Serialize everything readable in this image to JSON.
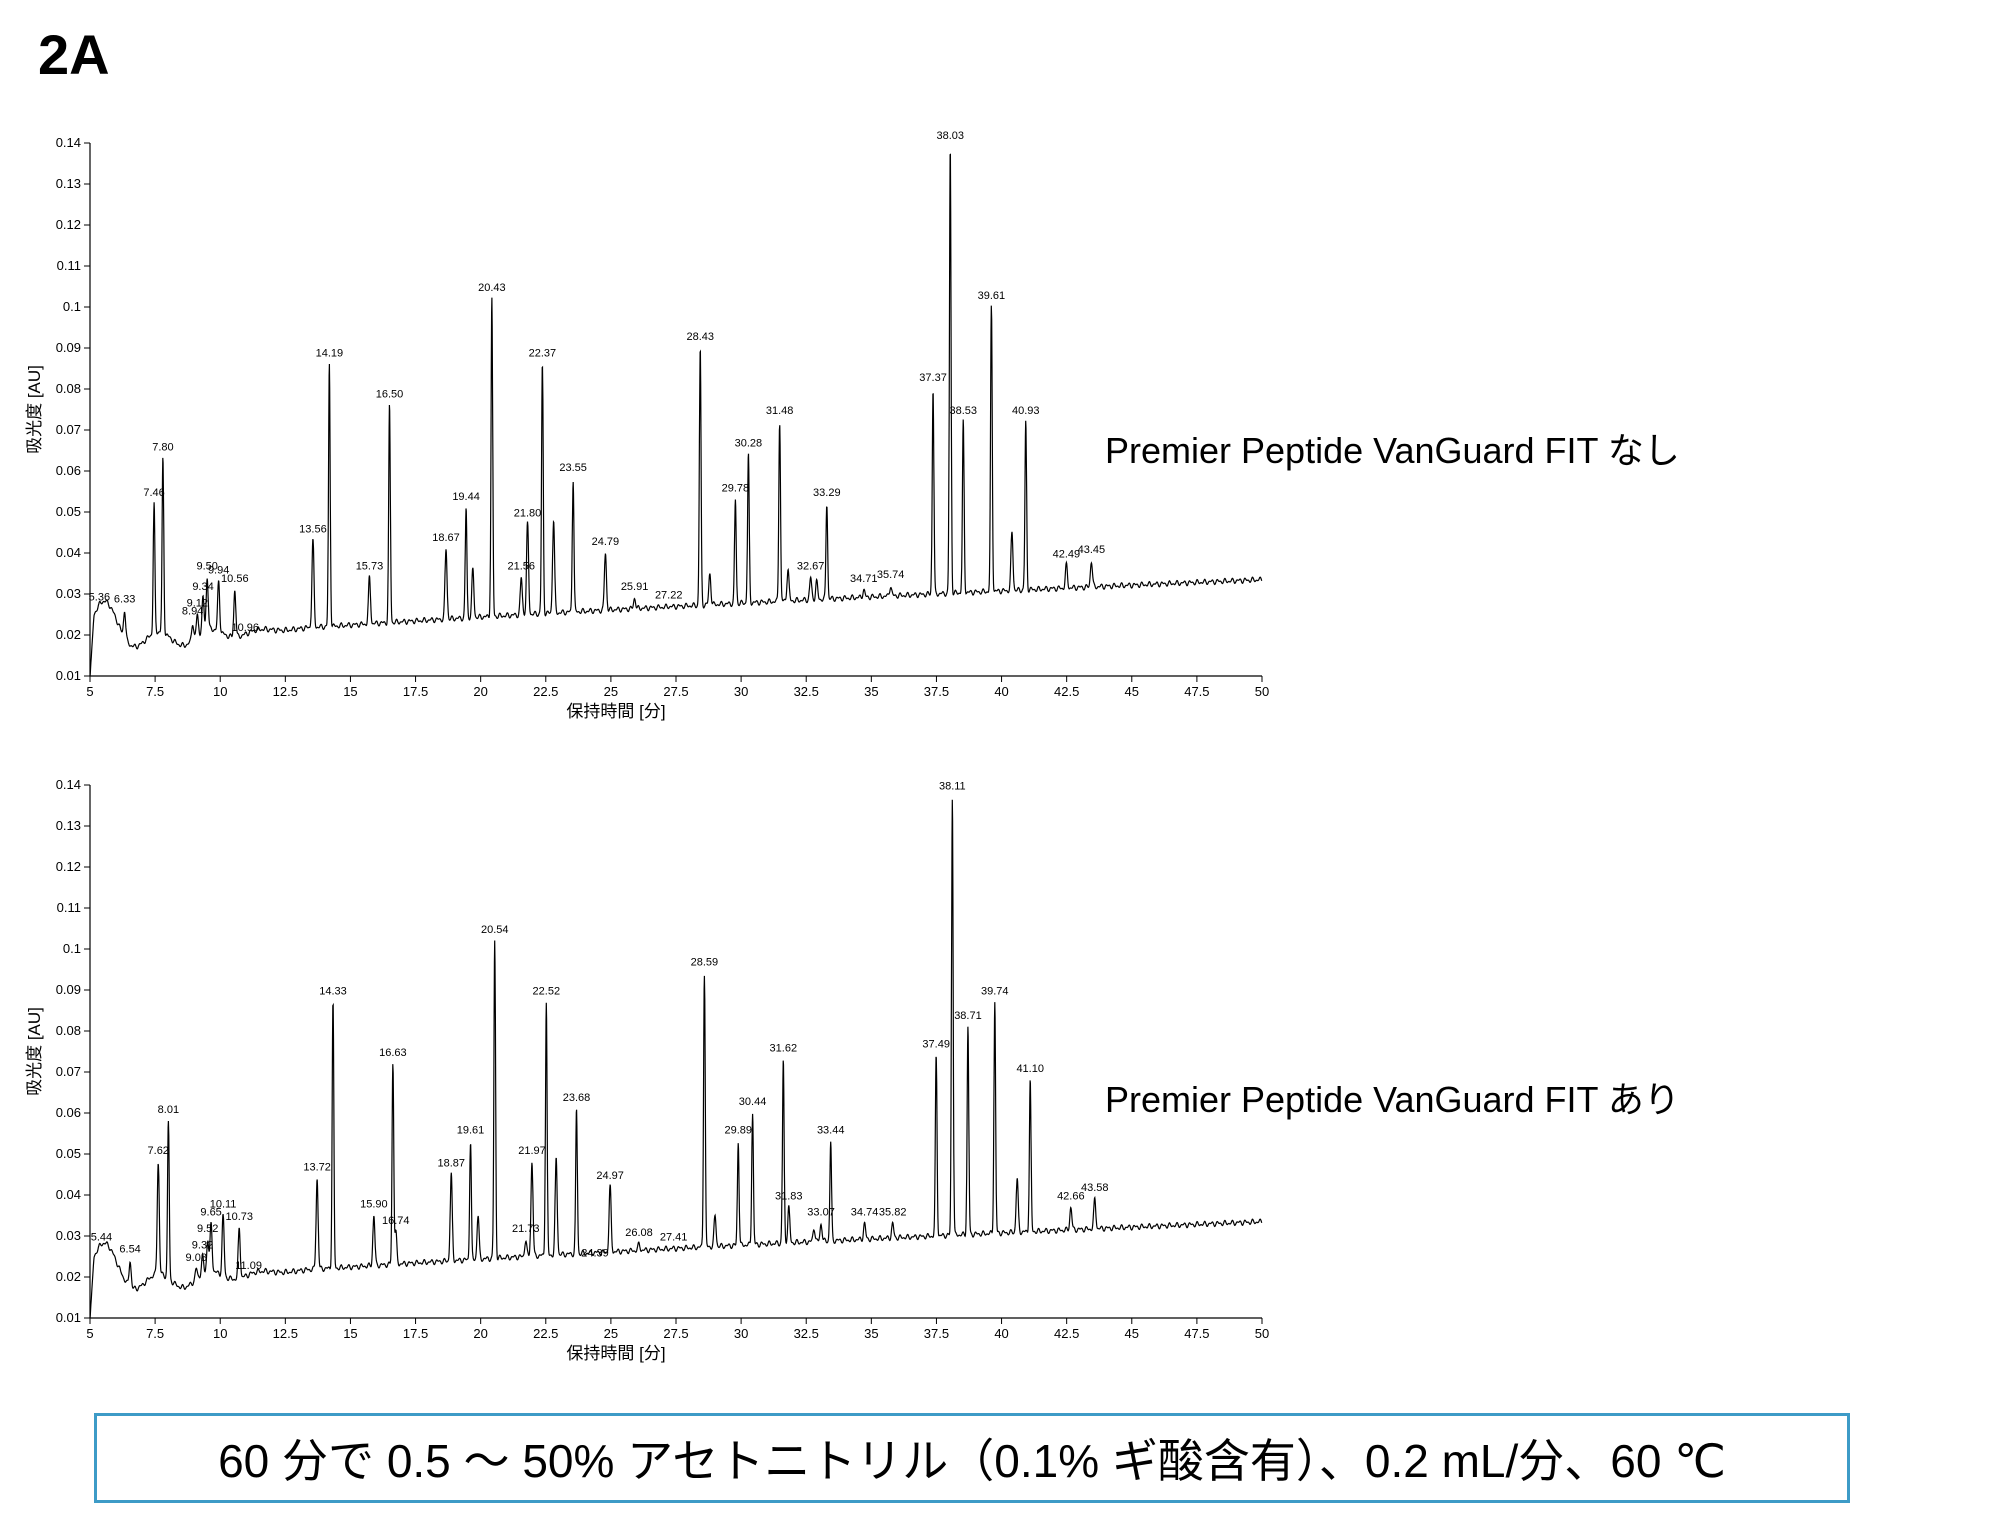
{
  "figure_label": "2A",
  "conditions": "60 分で 0.5 ～ 50% アセトニトリル（0.1% ギ酸含有）、0.2 mL/分、60 ℃",
  "colors": {
    "trace": "#000000",
    "box_border": "#3d9bc7"
  },
  "chart_data": [
    {
      "type": "line",
      "series_label": "Premier Peptide VanGuard FIT なし",
      "xlabel": "保持時間 [分]",
      "ylabel": "吸光度 [AU]",
      "xlim": [
        5,
        50
      ],
      "ylim": [
        0.01,
        0.14
      ],
      "xticks": [
        "5",
        "7.5",
        "10",
        "12.5",
        "15",
        "17.5",
        "20",
        "22.5",
        "25",
        "27.5",
        "30",
        "32.5",
        "35",
        "37.5",
        "40",
        "42.5",
        "45",
        "47.5",
        "50"
      ],
      "yticks": [
        "0.01",
        "0.02",
        "0.03",
        "0.04",
        "0.05",
        "0.06",
        "0.07",
        "0.08",
        "0.09",
        "0.1",
        "0.11",
        "0.12",
        "0.13",
        "0.14"
      ],
      "grid": false,
      "peaks": [
        {
          "rt": 5.36,
          "label": "5.36",
          "h": 0.0265
        },
        {
          "rt": 6.33,
          "label": "6.33",
          "h": 0.026
        },
        {
          "rt": 7.46,
          "label": "7.46",
          "h": 0.052
        },
        {
          "rt": 7.8,
          "label": "7.80",
          "h": 0.063
        },
        {
          "rt": 8.94,
          "label": "8.94",
          "h": 0.023
        },
        {
          "rt": 9.12,
          "label": "9.12",
          "h": 0.025
        },
        {
          "rt": 9.34,
          "label": "9.34",
          "h": 0.029
        },
        {
          "rt": 9.5,
          "label": "9.50",
          "h": 0.034
        },
        {
          "rt": 9.94,
          "label": "9.94",
          "h": 0.033
        },
        {
          "rt": 10.56,
          "label": "10.56",
          "h": 0.031
        },
        {
          "rt": 10.96,
          "label": "10.96",
          "h": 0.019
        },
        {
          "rt": 13.56,
          "label": "13.56",
          "h": 0.043
        },
        {
          "rt": 14.19,
          "label": "14.19",
          "h": 0.086
        },
        {
          "rt": 15.73,
          "label": "15.73",
          "h": 0.034
        },
        {
          "rt": 16.5,
          "label": "16.50",
          "h": 0.076
        },
        {
          "rt": 18.67,
          "label": "18.67",
          "h": 0.041
        },
        {
          "rt": 19.44,
          "label": "19.44",
          "h": 0.051
        },
        {
          "rt": 19.7,
          "label": "",
          "h": 0.036
        },
        {
          "rt": 20.43,
          "label": "20.43",
          "h": 0.102
        },
        {
          "rt": 21.56,
          "label": "21.56",
          "h": 0.034
        },
        {
          "rt": 21.8,
          "label": "21.80",
          "h": 0.047
        },
        {
          "rt": 22.37,
          "label": "22.37",
          "h": 0.086
        },
        {
          "rt": 22.8,
          "label": "",
          "h": 0.048
        },
        {
          "rt": 23.55,
          "label": "23.55",
          "h": 0.058
        },
        {
          "rt": 24.2,
          "label": "",
          "h": 0.025
        },
        {
          "rt": 24.79,
          "label": "24.79",
          "h": 0.04
        },
        {
          "rt": 25.91,
          "label": "25.91",
          "h": 0.029
        },
        {
          "rt": 27.22,
          "label": "27.22",
          "h": 0.027
        },
        {
          "rt": 28.43,
          "label": "28.43",
          "h": 0.09
        },
        {
          "rt": 28.8,
          "label": "",
          "h": 0.035
        },
        {
          "rt": 29.78,
          "label": "29.78",
          "h": 0.053
        },
        {
          "rt": 30.28,
          "label": "30.28",
          "h": 0.064
        },
        {
          "rt": 31.48,
          "label": "31.48",
          "h": 0.072
        },
        {
          "rt": 31.8,
          "label": "",
          "h": 0.036
        },
        {
          "rt": 32.67,
          "label": "32.67",
          "h": 0.034
        },
        {
          "rt": 32.9,
          "label": "",
          "h": 0.033
        },
        {
          "rt": 33.29,
          "label": "33.29",
          "h": 0.052
        },
        {
          "rt": 34.71,
          "label": "34.71",
          "h": 0.031
        },
        {
          "rt": 35.74,
          "label": "35.74",
          "h": 0.032
        },
        {
          "rt": 37.37,
          "label": "37.37",
          "h": 0.08
        },
        {
          "rt": 38.03,
          "label": "38.03",
          "h": 0.139
        },
        {
          "rt": 38.53,
          "label": "38.53",
          "h": 0.072
        },
        {
          "rt": 39.61,
          "label": "39.61",
          "h": 0.1
        },
        {
          "rt": 40.4,
          "label": "",
          "h": 0.045
        },
        {
          "rt": 40.93,
          "label": "40.93",
          "h": 0.072
        },
        {
          "rt": 42.49,
          "label": "42.49",
          "h": 0.037
        },
        {
          "rt": 43.45,
          "label": "43.45",
          "h": 0.038
        }
      ]
    },
    {
      "type": "line",
      "series_label": "Premier Peptide VanGuard FIT あり",
      "xlabel": "保持時間 [分]",
      "ylabel": "吸光度 [AU]",
      "xlim": [
        5,
        50
      ],
      "ylim": [
        0.01,
        0.14
      ],
      "xticks": [
        "5",
        "7.5",
        "10",
        "12.5",
        "15",
        "17.5",
        "20",
        "22.5",
        "25",
        "27.5",
        "30",
        "32.5",
        "35",
        "37.5",
        "40",
        "42.5",
        "45",
        "47.5",
        "50"
      ],
      "yticks": [
        "0.01",
        "0.02",
        "0.03",
        "0.04",
        "0.05",
        "0.06",
        "0.07",
        "0.08",
        "0.09",
        "0.1",
        "0.11",
        "0.12",
        "0.13",
        "0.14"
      ],
      "grid": false,
      "peaks": [
        {
          "rt": 5.44,
          "label": "5.44",
          "h": 0.027
        },
        {
          "rt": 6.54,
          "label": "6.54",
          "h": 0.024
        },
        {
          "rt": 7.62,
          "label": "7.62",
          "h": 0.048
        },
        {
          "rt": 8.01,
          "label": "8.01",
          "h": 0.058
        },
        {
          "rt": 9.08,
          "label": "9.08",
          "h": 0.022
        },
        {
          "rt": 9.32,
          "label": "9.32",
          "h": 0.025
        },
        {
          "rt": 9.52,
          "label": "9.52",
          "h": 0.029
        },
        {
          "rt": 9.65,
          "label": "9.65",
          "h": 0.033
        },
        {
          "rt": 10.11,
          "label": "10.11",
          "h": 0.035
        },
        {
          "rt": 10.73,
          "label": "10.73",
          "h": 0.032
        },
        {
          "rt": 11.09,
          "label": "11.09",
          "h": 0.02
        },
        {
          "rt": 13.72,
          "label": "13.72",
          "h": 0.044
        },
        {
          "rt": 14.33,
          "label": "14.33",
          "h": 0.087
        },
        {
          "rt": 15.9,
          "label": "15.90",
          "h": 0.035
        },
        {
          "rt": 16.63,
          "label": "16.63",
          "h": 0.072
        },
        {
          "rt": 16.74,
          "label": "16.74",
          "h": 0.031
        },
        {
          "rt": 18.87,
          "label": "18.87",
          "h": 0.045
        },
        {
          "rt": 19.61,
          "label": "19.61",
          "h": 0.053
        },
        {
          "rt": 19.9,
          "label": "",
          "h": 0.035
        },
        {
          "rt": 20.54,
          "label": "20.54",
          "h": 0.102
        },
        {
          "rt": 21.73,
          "label": "21.73",
          "h": 0.029
        },
        {
          "rt": 21.97,
          "label": "21.97",
          "h": 0.048
        },
        {
          "rt": 22.52,
          "label": "22.52",
          "h": 0.087
        },
        {
          "rt": 22.9,
          "label": "",
          "h": 0.049
        },
        {
          "rt": 23.68,
          "label": "23.68",
          "h": 0.061
        },
        {
          "rt": 24.39,
          "label": "24.39",
          "h": 0.023
        },
        {
          "rt": 24.97,
          "label": "24.97",
          "h": 0.042
        },
        {
          "rt": 26.08,
          "label": "26.08",
          "h": 0.028
        },
        {
          "rt": 27.41,
          "label": "27.41",
          "h": 0.027
        },
        {
          "rt": 28.59,
          "label": "28.59",
          "h": 0.094
        },
        {
          "rt": 29.0,
          "label": "",
          "h": 0.035
        },
        {
          "rt": 29.89,
          "label": "29.89",
          "h": 0.053
        },
        {
          "rt": 30.44,
          "label": "30.44",
          "h": 0.06
        },
        {
          "rt": 31.62,
          "label": "31.62",
          "h": 0.073
        },
        {
          "rt": 31.83,
          "label": "31.83",
          "h": 0.037
        },
        {
          "rt": 33.07,
          "label": "33.07",
          "h": 0.033
        },
        {
          "rt": 32.8,
          "label": "",
          "h": 0.032
        },
        {
          "rt": 33.44,
          "label": "33.44",
          "h": 0.053
        },
        {
          "rt": 34.74,
          "label": "34.74",
          "h": 0.033
        },
        {
          "rt": 35.82,
          "label": "35.82",
          "h": 0.033
        },
        {
          "rt": 37.49,
          "label": "37.49",
          "h": 0.074
        },
        {
          "rt": 38.11,
          "label": "38.11",
          "h": 0.137
        },
        {
          "rt": 38.71,
          "label": "38.71",
          "h": 0.081
        },
        {
          "rt": 39.74,
          "label": "39.74",
          "h": 0.087
        },
        {
          "rt": 40.6,
          "label": "",
          "h": 0.044
        },
        {
          "rt": 41.1,
          "label": "41.10",
          "h": 0.068
        },
        {
          "rt": 42.66,
          "label": "42.66",
          "h": 0.037
        },
        {
          "rt": 43.58,
          "label": "43.58",
          "h": 0.039
        }
      ]
    }
  ]
}
